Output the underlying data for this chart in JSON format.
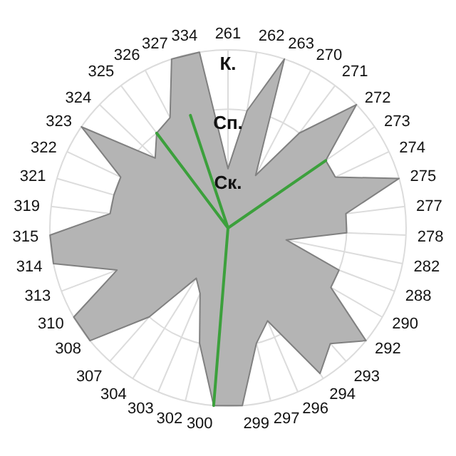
{
  "chart_data": {
    "type": "radar",
    "categories": [
      "261",
      "262",
      "263",
      "270",
      "271",
      "272",
      "273",
      "274",
      "275",
      "277",
      "278",
      "282",
      "288",
      "290",
      "292",
      "293",
      "294",
      "296",
      "297",
      "299",
      "300",
      "302",
      "303",
      "304",
      "307",
      "308",
      "310",
      "313",
      "314",
      "315",
      "319",
      "321",
      "322",
      "323",
      "324",
      "325",
      "326",
      "327",
      "334"
    ],
    "series": [
      {
        "color": "#b4b4b4",
        "values": [
          1.0,
          2.0,
          3.0,
          1.0,
          2.0,
          3.0,
          2.0,
          2.0,
          3.0,
          2.0,
          2.0,
          1.0,
          2.0,
          2.0,
          3.0,
          2.6,
          2.9,
          1.7,
          2.0,
          3.0,
          3.0,
          2.0,
          1.2,
          1.0,
          2.0,
          3.0,
          3.0,
          2.0,
          3.0,
          3.0,
          2.0,
          2.0,
          2.0,
          3.0,
          1.7,
          2.0,
          2.1,
          3.0,
          3.0
        ]
      },
      {
        "color": "#3ca03c",
        "values": [
          0,
          0,
          0,
          0,
          0,
          0,
          2.0,
          0,
          0,
          0,
          0,
          0,
          0,
          0,
          0,
          0,
          0,
          0,
          0,
          0,
          3.0,
          0,
          0,
          0,
          0,
          0,
          0,
          0,
          0,
          0,
          0,
          0,
          0,
          0,
          0,
          2.0,
          0,
          2.0,
          0
        ]
      }
    ],
    "ylim": [
      0,
      3
    ],
    "yticks": [
      {
        "value": 1,
        "label": "Ск."
      },
      {
        "value": 2,
        "label": "Сп."
      },
      {
        "value": 3,
        "label": "К."
      }
    ],
    "grid": true
  }
}
